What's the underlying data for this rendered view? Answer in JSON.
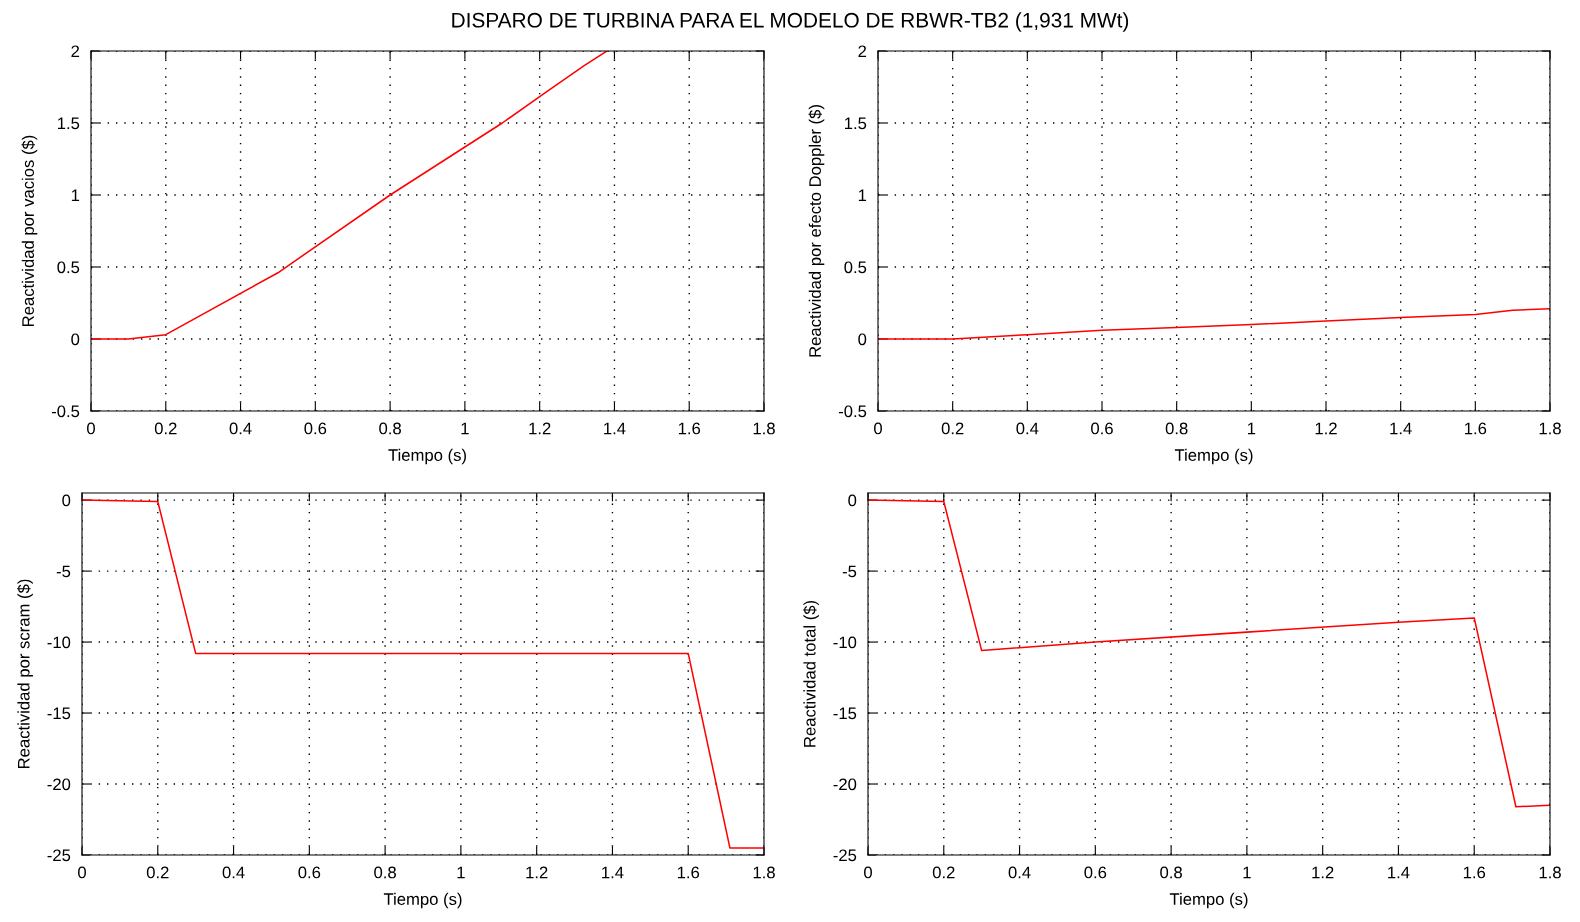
{
  "chart_data": [
    {
      "type": "line",
      "title": "DISPARO DE TURBINA PARA EL MODELO DE RBWR-TB2 (1,931 MWt)",
      "xlabel": "Tiempo (s)",
      "ylabel": "Reactividad por vacios ($)",
      "x": [
        0,
        0.1,
        0.2,
        0.5,
        0.8,
        1.1,
        1.22,
        1.32,
        1.38
      ],
      "series": [
        {
          "color": "#ff0000",
          "values": [
            0,
            0,
            0.03,
            0.46,
            1.0,
            1.5,
            1.72,
            1.9,
            2.0
          ]
        }
      ],
      "xlim": [
        0,
        1.8
      ],
      "ylim": [
        -0.5,
        2
      ],
      "xticks": [
        0,
        0.2,
        0.4,
        0.6,
        0.8,
        1,
        1.2,
        1.4,
        1.6,
        1.8
      ],
      "yticks": [
        -0.5,
        0,
        0.5,
        1,
        1.5,
        2
      ],
      "grid": true,
      "line_style": "solid"
    },
    {
      "type": "line",
      "xlabel": "Tiempo (s)",
      "ylabel": "Reactividad por efecto Doppler ($)",
      "x": [
        0,
        0.2,
        0.4,
        0.6,
        0.8,
        1.0,
        1.2,
        1.4,
        1.6,
        1.7,
        1.8
      ],
      "series": [
        {
          "color": "#ff0000",
          "values": [
            0,
            0,
            0.03,
            0.06,
            0.08,
            0.1,
            0.125,
            0.15,
            0.17,
            0.2,
            0.21
          ]
        }
      ],
      "xlim": [
        0,
        1.8
      ],
      "ylim": [
        -0.5,
        2
      ],
      "xticks": [
        0,
        0.2,
        0.4,
        0.6,
        0.8,
        1,
        1.2,
        1.4,
        1.6,
        1.8
      ],
      "yticks": [
        -0.5,
        0,
        0.5,
        1,
        1.5,
        2
      ],
      "grid": true,
      "line_style": "solid"
    },
    {
      "type": "line",
      "xlabel": "Tiempo (s)",
      "ylabel": "Reactividad por scram ($)",
      "x": [
        0,
        0.2,
        0.3,
        1.6,
        1.71,
        1.8
      ],
      "series": [
        {
          "color": "#ff0000",
          "values": [
            0,
            -0.1,
            -10.8,
            -10.8,
            -24.5,
            -24.5
          ]
        }
      ],
      "xlim": [
        0,
        1.8
      ],
      "ylim": [
        -25,
        0.5
      ],
      "xticks": [
        0,
        0.2,
        0.4,
        0.6,
        0.8,
        1,
        1.2,
        1.4,
        1.6,
        1.8
      ],
      "yticks": [
        -25,
        -20,
        -15,
        -10,
        -5,
        0
      ],
      "grid": true,
      "line_style": "solid"
    },
    {
      "type": "line",
      "xlabel": "Tiempo (s)",
      "ylabel": "Reactividad total ($)",
      "x": [
        0,
        0.2,
        0.3,
        0.6,
        1.0,
        1.4,
        1.6,
        1.71,
        1.8
      ],
      "series": [
        {
          "color": "#ff0000",
          "values": [
            0,
            -0.1,
            -10.6,
            -10.0,
            -9.3,
            -8.6,
            -8.3,
            -21.6,
            -21.5
          ]
        }
      ],
      "xlim": [
        0,
        1.8
      ],
      "ylim": [
        -25,
        0.5
      ],
      "xticks": [
        0,
        0.2,
        0.4,
        0.6,
        0.8,
        1,
        1.2,
        1.4,
        1.6,
        1.8
      ],
      "yticks": [
        -25,
        -20,
        -15,
        -10,
        -5,
        0
      ],
      "grid": true,
      "line_style": "solid"
    }
  ]
}
